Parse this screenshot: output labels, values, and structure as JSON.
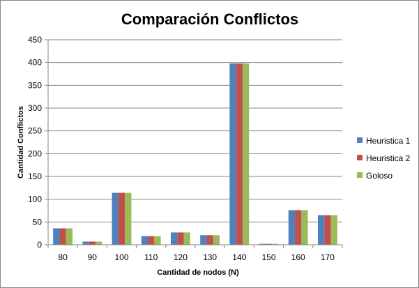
{
  "chart_data": {
    "type": "bar",
    "title": "Comparación Conflictos",
    "xlabel": "Cantidad  de nodos (N)",
    "ylabel": "Cantidad  Conflictos",
    "categories": [
      "80",
      "90",
      "100",
      "110",
      "120",
      "130",
      "140",
      "150",
      "160",
      "170"
    ],
    "series": [
      {
        "name": "Heuristica 1",
        "color": "#4f81bd",
        "values": [
          36,
          7,
          114,
          19,
          27,
          21,
          398,
          2,
          76,
          65
        ]
      },
      {
        "name": "Heuristica 2",
        "color": "#c0504d",
        "values": [
          36,
          7,
          114,
          19,
          27,
          21,
          398,
          2,
          76,
          65
        ]
      },
      {
        "name": "Goloso",
        "color": "#9bbb59",
        "values": [
          36,
          7,
          114,
          19,
          27,
          21,
          398,
          2,
          76,
          65
        ]
      }
    ],
    "ylim": [
      0,
      450
    ],
    "yticks": [
      0,
      50,
      100,
      150,
      200,
      250,
      300,
      350,
      400,
      450
    ],
    "grid": true,
    "legend_position": "right"
  }
}
